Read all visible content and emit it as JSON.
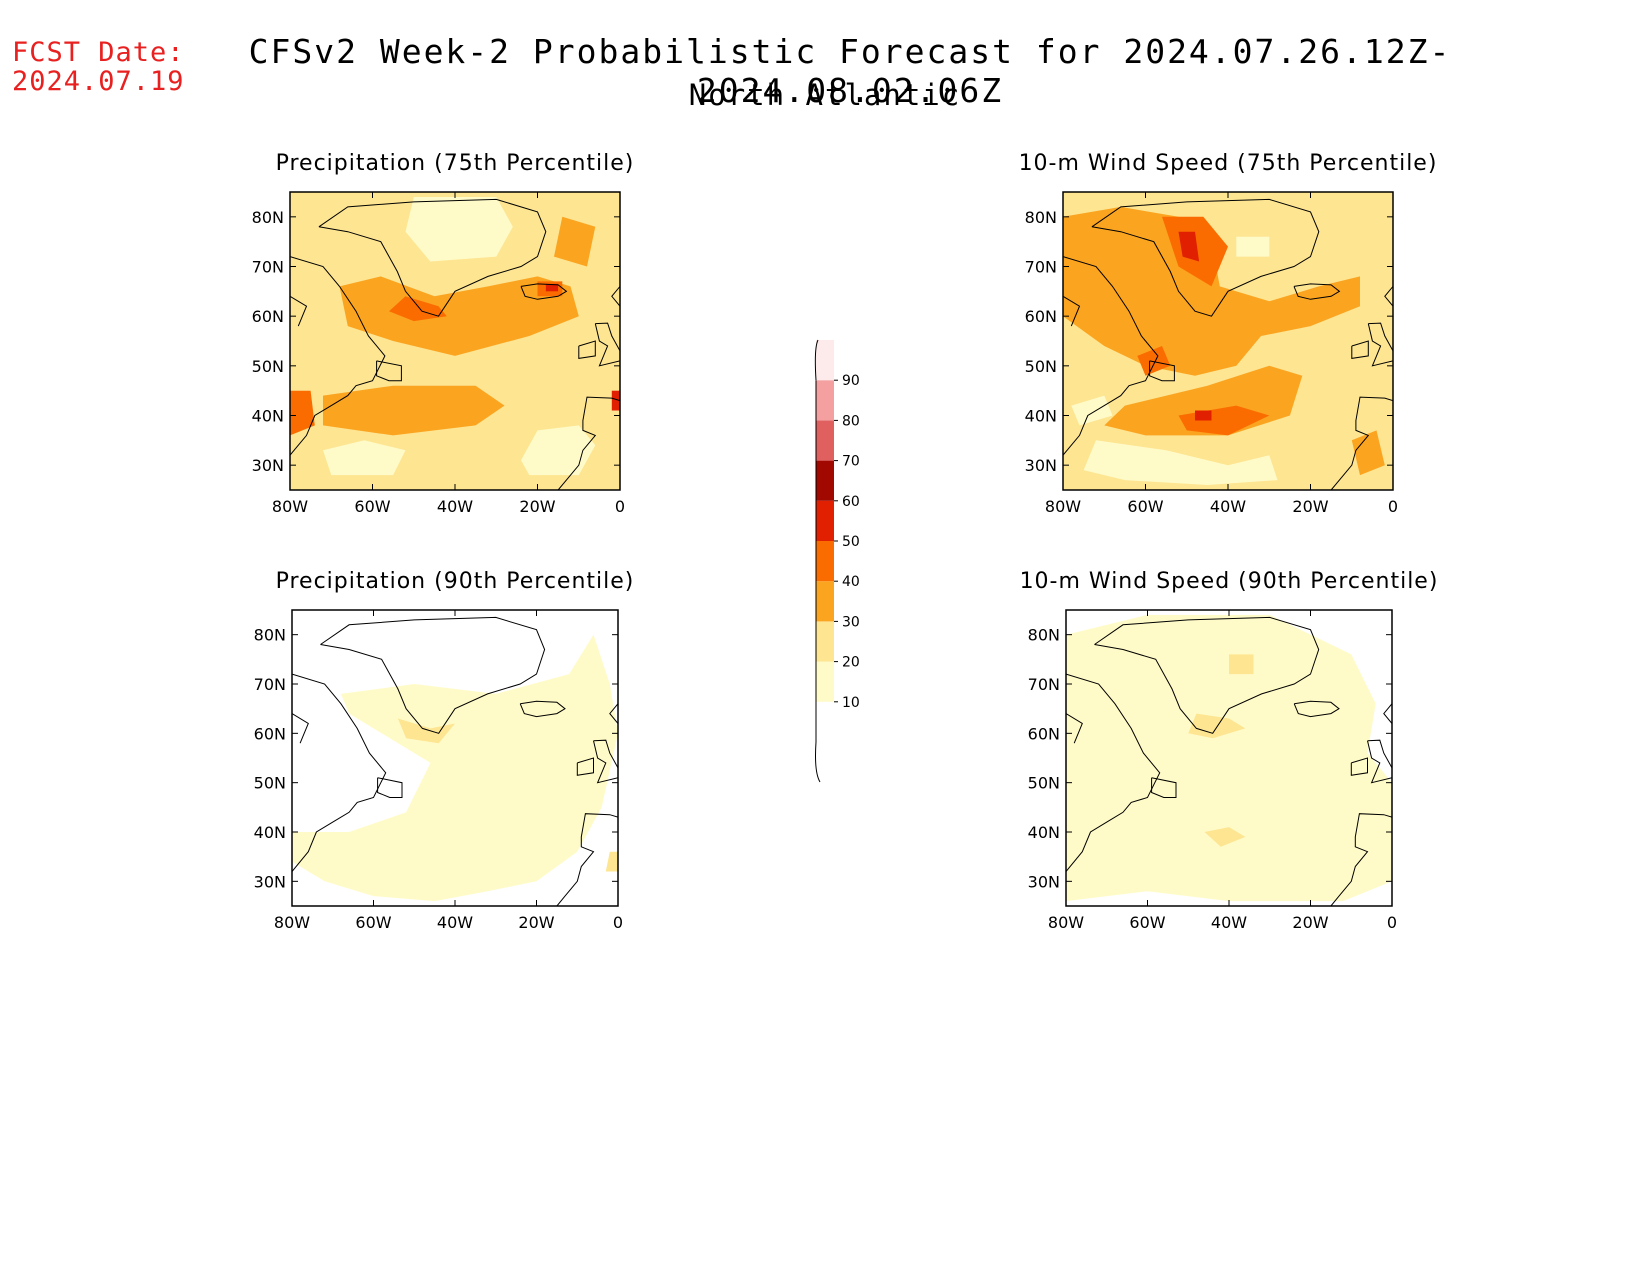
{
  "header": {
    "fcst_label": "FCST Date:",
    "fcst_date": "2024.07.19",
    "title": "CFSv2 Week-2 Probabilistic Forecast for 2024.07.26.12Z-2024.08.02.06Z",
    "subtitle": "North Atlantic"
  },
  "panels": [
    {
      "title": "Precipitation (75th Percentile)",
      "intensity": "high"
    },
    {
      "title": "10-m Wind Speed (75th Percentile)",
      "intensity": "high"
    },
    {
      "title": "Precipitation (90th Percentile)",
      "intensity": "low"
    },
    {
      "title": "10-m Wind Speed (90th Percentile)",
      "intensity": "low"
    }
  ],
  "axes": {
    "lat_labels": [
      "80N",
      "70N",
      "60N",
      "50N",
      "40N",
      "30N"
    ],
    "lon_labels": [
      "80W",
      "60W",
      "40W",
      "20W",
      "0"
    ]
  },
  "colorbar": {
    "levels": [
      10,
      20,
      30,
      40,
      50,
      60,
      70,
      80,
      90
    ],
    "labels": [
      "10",
      "20",
      "30",
      "40",
      "50",
      "60",
      "70",
      "80",
      "90"
    ],
    "colors": [
      "#fffbc8",
      "#fde592",
      "#fba420",
      "#fb6c00",
      "#e02000",
      "#a00800",
      "#e06060",
      "#f4a0a0",
      "#fdebeb"
    ]
  }
}
